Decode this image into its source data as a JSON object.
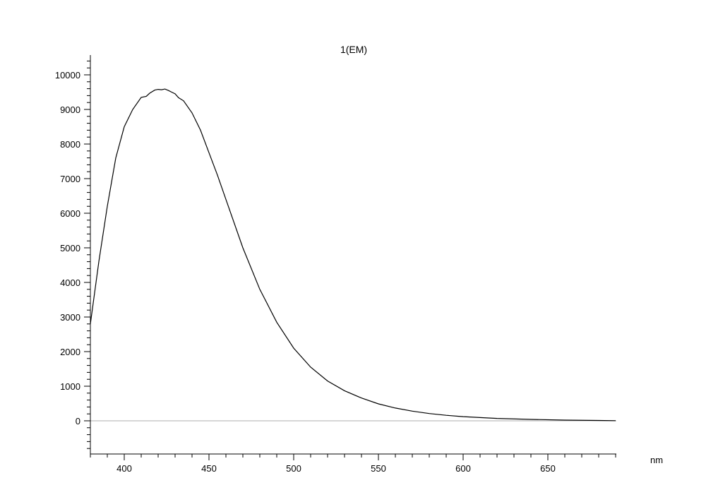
{
  "chart_data": {
    "type": "line",
    "title": "1(EM)",
    "xlabel": "nm",
    "ylabel": "",
    "xlim": [
      380,
      690
    ],
    "ylim": [
      -1000,
      10600
    ],
    "x_ticks": [
      400,
      450,
      500,
      550,
      600,
      650
    ],
    "y_ticks": [
      0,
      1000,
      2000,
      3000,
      4000,
      5000,
      6000,
      7000,
      8000,
      9000,
      10000
    ],
    "grid": false,
    "zero_line": true,
    "series": [
      {
        "color": "#000000",
        "x": [
          380,
          385,
          390,
          395,
          400,
          405,
          410,
          413,
          415,
          418,
          420,
          422,
          424,
          426,
          428,
          430,
          432,
          435,
          440,
          445,
          450,
          455,
          460,
          470,
          480,
          490,
          500,
          510,
          520,
          530,
          540,
          550,
          560,
          570,
          580,
          590,
          600,
          620,
          640,
          660,
          680,
          690
        ],
        "y": [
          2800,
          4600,
          6200,
          7600,
          8500,
          9000,
          9350,
          9380,
          9470,
          9560,
          9580,
          9570,
          9590,
          9550,
          9500,
          9450,
          9340,
          9250,
          8900,
          8400,
          7750,
          7100,
          6400,
          5000,
          3800,
          2850,
          2100,
          1550,
          1150,
          870,
          660,
          490,
          370,
          280,
          210,
          160,
          120,
          70,
          40,
          20,
          10,
          5
        ]
      }
    ]
  }
}
